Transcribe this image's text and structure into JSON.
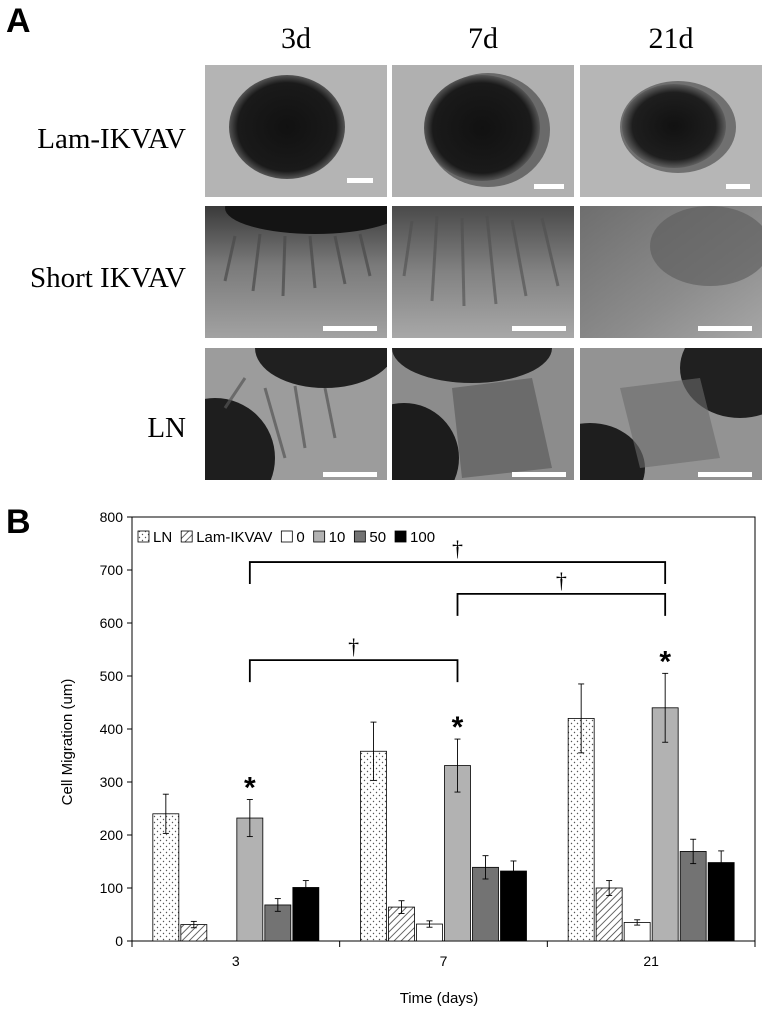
{
  "panel_a": {
    "letter": "A",
    "columns": [
      "3d",
      "7d",
      "21d"
    ],
    "rows": [
      "Lam-IKVAV",
      "Short IKVAV",
      "LN"
    ]
  },
  "panel_b": {
    "letter": "B"
  },
  "chart_data": {
    "type": "bar",
    "title": "",
    "xlabel": "Time (days)",
    "ylabel": "Cell Migration (um)",
    "ylim": [
      0,
      800
    ],
    "yticks": [
      0,
      100,
      200,
      300,
      400,
      500,
      600,
      700,
      800
    ],
    "categories": [
      "3",
      "7",
      "21"
    ],
    "series": [
      {
        "name": "LN",
        "values": [
          240,
          358,
          420
        ],
        "errors": [
          37,
          55,
          65
        ],
        "color": "#ffffff",
        "pattern": "dots"
      },
      {
        "name": "Lam-IKVAV",
        "values": [
          31,
          64,
          100
        ],
        "errors": [
          6,
          12,
          14
        ],
        "color": "#ffffff",
        "pattern": "hatch"
      },
      {
        "name": "0",
        "values": [
          0,
          32,
          35
        ],
        "errors": [
          0,
          6,
          5
        ],
        "color": "#ffffff",
        "pattern": "none"
      },
      {
        "name": "10",
        "values": [
          232,
          331,
          440
        ],
        "errors": [
          35,
          50,
          65
        ],
        "color": "#b2b2b2",
        "pattern": "none"
      },
      {
        "name": "50",
        "values": [
          68,
          139,
          169
        ],
        "errors": [
          12,
          22,
          23
        ],
        "color": "#737373",
        "pattern": "none"
      },
      {
        "name": "100",
        "values": [
          101,
          132,
          148
        ],
        "errors": [
          13,
          19,
          22
        ],
        "color": "#000000",
        "pattern": "none"
      }
    ],
    "legend": "top-left",
    "grid": false,
    "annotations": {
      "star": "*",
      "star_marks": [
        {
          "category": "3",
          "series": "10"
        },
        {
          "category": "7",
          "series": "10"
        },
        {
          "category": "21",
          "series": "10"
        }
      ],
      "dagger": "†",
      "brackets": [
        {
          "from_category": "3",
          "to_category": "7",
          "y": 530
        },
        {
          "from_category": "7",
          "to_category": "21",
          "y": 655
        },
        {
          "from_category": "3",
          "to_category": "21",
          "y": 715
        }
      ]
    }
  }
}
